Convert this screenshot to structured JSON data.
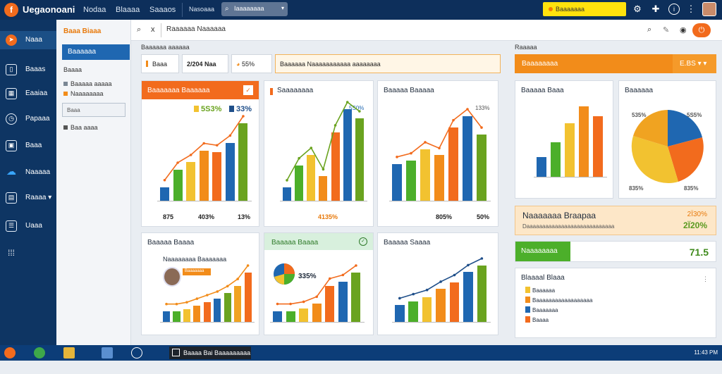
{
  "app": {
    "title": "Uegaonoani",
    "logo": "f"
  },
  "topbar": {
    "menu": [
      "Nodaa",
      "Blaaaa",
      "Saaaos",
      "Nasoaaa"
    ],
    "search": "Iaaaaaaaa",
    "notice": "Baaaaaaa",
    "icons": [
      "gear-icon",
      "puzzle-icon",
      "info-icon",
      "menu-icon"
    ]
  },
  "nav": {
    "items": [
      {
        "label": "Naaa",
        "icon": "compass-icon"
      },
      {
        "label": "Baaas",
        "icon": "calendar-icon"
      },
      {
        "label": "Eaaiaa",
        "icon": "chart-icon"
      },
      {
        "label": "Papaaa",
        "icon": "clock-icon"
      },
      {
        "label": "Baaa",
        "icon": "image-icon"
      },
      {
        "label": "Naaaaa",
        "icon": "cloud-icon"
      },
      {
        "label": "Raaaa ▾",
        "icon": "grid-icon"
      },
      {
        "label": "Uaaa",
        "icon": "table-icon"
      },
      {
        "label": "",
        "icon": "apps-icon"
      }
    ]
  },
  "sub": {
    "header": "Baaa Biaaa",
    "selected": "Baaaaaa",
    "heading": "Baaaa",
    "items": [
      "Baaaaa aaaaa",
      "Naaaaaaaa"
    ],
    "field": "Baaa",
    "footer": "Baa aaaa"
  },
  "toolbar": {
    "crumb": "Raaaaaa Naaaaaa",
    "close": "x"
  },
  "filters": {
    "label": "Baaaaaa aaaaaa",
    "chip1": "Baaa",
    "chip2": "2/204 Naa",
    "chip3": "55%",
    "wide": "Baaaaaa Naaaaaaaaaaa aaaaaaaa"
  },
  "right": {
    "label": "Raaaaa",
    "banner_title": "Baaaaaaaa",
    "banner_value": "E.BS ▾ ▾",
    "highlight_title": "Naaaaaaa Braapaa",
    "highlight_sub": "Daaaaaaaaaaaaaaaaaaaaaaaaaaaa",
    "highlight_v1": "2Ï30%",
    "highlight_v2": "2Ï20%",
    "green_button": "Naaaaaaaa",
    "green_value": "71.5",
    "list_title": "Blaaaal Blaaa",
    "list": [
      "Baaaaaa",
      "Baaaaaaaaaaaaaaaaaa",
      "Baaaaaaa",
      "Baaaa"
    ]
  },
  "cards": {
    "c1": {
      "title": "Baaaaaaa Baaaaaa",
      "leg1": "5S3%",
      "leg2": "33%",
      "foot": [
        "875",
        "403%",
        "13%"
      ]
    },
    "c2": {
      "title": "Saaaaaaaa",
      "leg": "5S0%",
      "foot": [
        "",
        "4135%",
        ""
      ]
    },
    "c3": {
      "title": "Baaaaa Baaaaa",
      "leg": "133%",
      "foot": [
        "",
        "805%",
        "50%"
      ]
    },
    "c4": {
      "title": "Baaaaa Baaa"
    },
    "c5": {
      "title": "Baaaaaa",
      "l1": "535%",
      "l2": "835%",
      "l3": "5S5%",
      "l4": "835%"
    },
    "c6": {
      "title": "Baaaaa Baaaa",
      "sub": "Naaaaaaaa Baaaaaaa",
      "chip": "Baaaaaaa"
    },
    "c7": {
      "title": "Baaaaa Baaaa",
      "leg": "335%"
    },
    "c8": {
      "title": "Baaaaa Saaaa"
    }
  },
  "taskbar": {
    "active": "Baaaa Bai Baaaaaaaaa",
    "clock": "11:43 PM"
  },
  "chart_data": [
    {
      "type": "bar",
      "title": "Baaaaaaa Baaaaaa",
      "values": [
        14,
        32,
        40,
        52,
        50,
        60,
        80
      ]
    },
    {
      "type": "bar",
      "title": "Saaaaaaaa",
      "values": [
        22,
        58,
        75,
        40,
        112,
        150,
        135
      ]
    },
    {
      "type": "bar",
      "title": "Baaaaa Baaaaa",
      "values": [
        50,
        55,
        70,
        62,
        100,
        115,
        90
      ]
    },
    {
      "type": "bar",
      "title": "Baaaaa Baaa",
      "values": [
        20,
        35,
        55,
        72,
        62
      ]
    },
    {
      "type": "pie",
      "title": "Baaaaaa",
      "values": [
        30,
        28,
        24,
        18
      ]
    },
    {
      "type": "bar",
      "title": "Baaaaa Baaaa",
      "values": [
        12,
        12,
        14,
        18,
        22,
        26,
        32,
        40,
        55
      ]
    },
    {
      "type": "bar",
      "title": "Baaaaa Baaaa",
      "values": [
        15,
        15,
        18,
        25,
        50,
        55,
        68
      ]
    },
    {
      "type": "bar",
      "title": "Baaaaa Saaaa",
      "values": [
        20,
        25,
        30,
        40,
        48,
        60,
        68
      ]
    }
  ]
}
